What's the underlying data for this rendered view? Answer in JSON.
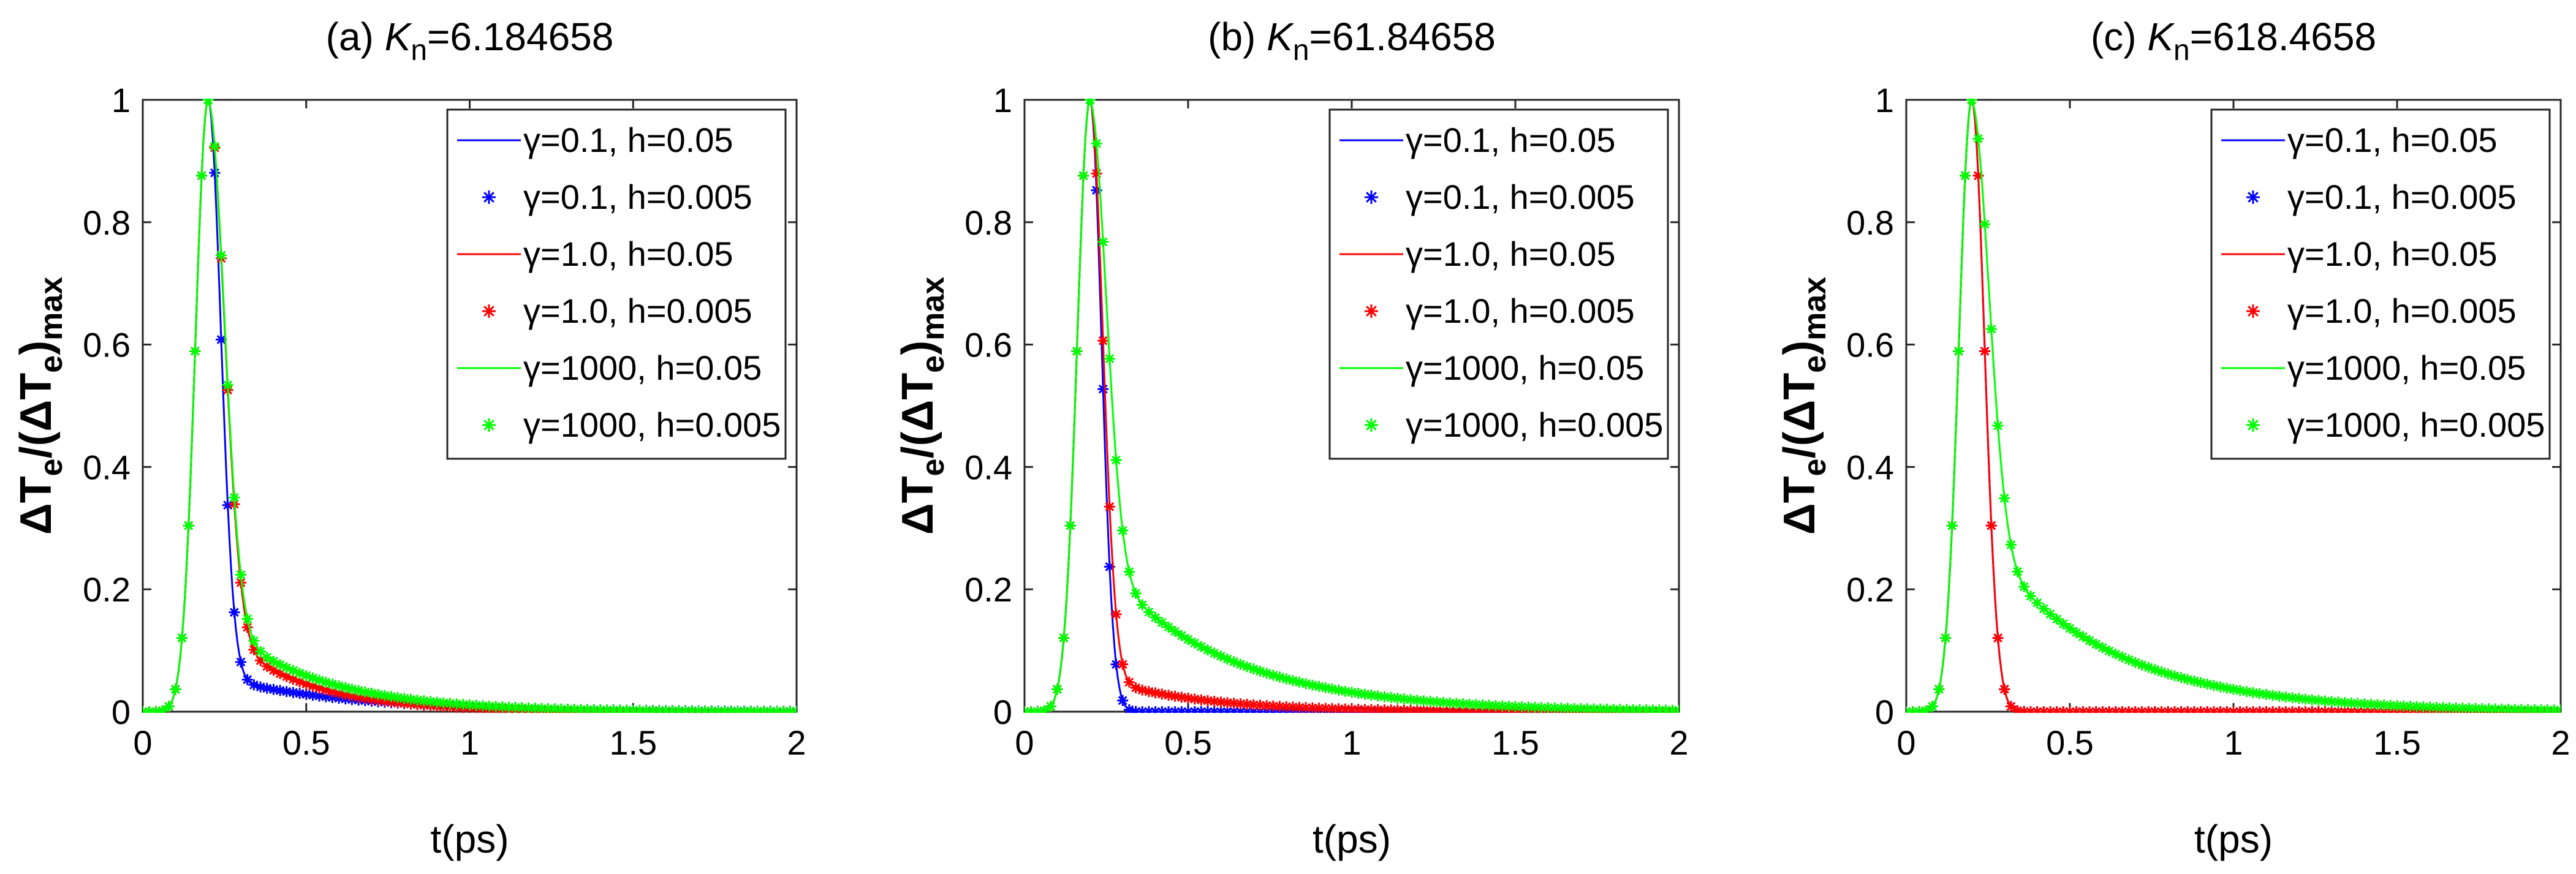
{
  "chart_data": [
    {
      "type": "line",
      "panel": "(a)",
      "title_prefix": "(a)",
      "title_symbol": "K",
      "title_subscript": "n",
      "title_value": "=6.184658",
      "xlabel": "t(ps)",
      "ylabel": {
        "delta": "Δ",
        "T": "T",
        "e": "e",
        "mid": "/(",
        "max_tail": ")",
        "max": "max"
      },
      "xlim": [
        0,
        2
      ],
      "ylim": [
        0,
        1
      ],
      "xticks": [
        "0",
        "0.5",
        "1",
        "1.5",
        "2"
      ],
      "yticks": [
        "0",
        "0.2",
        "0.4",
        "0.6",
        "0.8",
        "1"
      ],
      "peak_t": 0.2,
      "rise_width": 0.055,
      "legend": [
        {
          "label": "γ=0.1, h=0.05",
          "style": "line",
          "color": "#0000ff"
        },
        {
          "label": "γ=0.1, h=0.005",
          "style": "marker",
          "color": "#0000ff"
        },
        {
          "label": "γ=1.0, h=0.05",
          "style": "line",
          "color": "#ff0000"
        },
        {
          "label": "γ=1.0, h=0.005",
          "style": "marker",
          "color": "#ff0000"
        },
        {
          "label": "γ=1000, h=0.05",
          "style": "line",
          "color": "#00ff00"
        },
        {
          "label": "γ=1000, h=0.005",
          "style": "marker",
          "color": "#00ff00"
        }
      ],
      "series": [
        {
          "name": "γ=0.1",
          "color": "#0000ff",
          "decay_fast": 0.055,
          "slow_amp": 0.06,
          "slow_tau": 0.4
        },
        {
          "name": "γ=1.0",
          "color": "#ff0000",
          "decay_fast": 0.07,
          "slow_amp": 0.15,
          "slow_tau": 0.25
        },
        {
          "name": "γ=1000",
          "color": "#00ff00",
          "decay_fast": 0.07,
          "slow_amp": 0.16,
          "slow_tau": 0.3
        }
      ]
    },
    {
      "type": "line",
      "panel": "(b)",
      "title_prefix": "(b)",
      "title_symbol": "K",
      "title_subscript": "n",
      "title_value": "=61.84658",
      "xlabel": "t(ps)",
      "ylabel": {
        "delta": "Δ",
        "T": "T",
        "e": "e",
        "mid": "/(",
        "max_tail": ")",
        "max": "max"
      },
      "xlim": [
        0,
        2
      ],
      "ylim": [
        0,
        1
      ],
      "xticks": [
        "0",
        "0.5",
        "1",
        "1.5",
        "2"
      ],
      "yticks": [
        "0",
        "0.2",
        "0.4",
        "0.6",
        "0.8",
        "1"
      ],
      "peak_t": 0.2,
      "rise_width": 0.055,
      "legend": [
        {
          "label": "γ=0.1, h=0.05",
          "style": "line",
          "color": "#0000ff"
        },
        {
          "label": "γ=0.1, h=0.005",
          "style": "marker",
          "color": "#0000ff"
        },
        {
          "label": "γ=1.0, h=0.05",
          "style": "line",
          "color": "#ff0000"
        },
        {
          "label": "γ=1.0, h=0.005",
          "style": "marker",
          "color": "#ff0000"
        },
        {
          "label": "γ=1000, h=0.05",
          "style": "line",
          "color": "#00ff00"
        },
        {
          "label": "γ=1000, h=0.005",
          "style": "marker",
          "color": "#00ff00"
        }
      ],
      "series": [
        {
          "name": "γ=0.1",
          "color": "#0000ff",
          "decay_fast": 0.05,
          "slow_amp": 0.0,
          "slow_tau": 0.3
        },
        {
          "name": "γ=1.0",
          "color": "#ff0000",
          "decay_fast": 0.055,
          "slow_amp": 0.06,
          "slow_tau": 0.3
        },
        {
          "name": "γ=1000",
          "color": "#00ff00",
          "decay_fast": 0.07,
          "slow_amp": 0.26,
          "slow_tau": 0.38
        }
      ]
    },
    {
      "type": "line",
      "panel": "(c)",
      "title_prefix": "(c)",
      "title_symbol": "K",
      "title_subscript": "n",
      "title_value": "=618.4658",
      "xlabel": "t(ps)",
      "ylabel": {
        "delta": "Δ",
        "T": "T",
        "e": "e",
        "mid": "/(",
        "max_tail": ")",
        "max": "max"
      },
      "xlim": [
        0,
        2
      ],
      "ylim": [
        0,
        1
      ],
      "xticks": [
        "0",
        "0.5",
        "1",
        "1.5",
        "2"
      ],
      "yticks": [
        "0",
        "0.2",
        "0.4",
        "0.6",
        "0.8",
        "1"
      ],
      "peak_t": 0.2,
      "rise_width": 0.055,
      "legend": [
        {
          "label": "γ=0.1, h=0.05",
          "style": "line",
          "color": "#0000ff"
        },
        {
          "label": "γ=0.1, h=0.005",
          "style": "marker",
          "color": "#0000ff"
        },
        {
          "label": "γ=1.0, h=0.05",
          "style": "line",
          "color": "#ff0000"
        },
        {
          "label": "γ=1.0, h=0.005",
          "style": "marker",
          "color": "#ff0000"
        },
        {
          "label": "γ=1000, h=0.05",
          "style": "line",
          "color": "#00ff00"
        },
        {
          "label": "γ=1000, h=0.005",
          "style": "marker",
          "color": "#00ff00"
        }
      ],
      "series": [
        {
          "name": "γ=0.1",
          "color": "#0000ff",
          "decay_fast": 0.055,
          "slow_amp": 0.0,
          "slow_tau": 0.3
        },
        {
          "name": "γ=1.0",
          "color": "#ff0000",
          "decay_fast": 0.055,
          "slow_amp": 0.0,
          "slow_tau": 0.3
        },
        {
          "name": "γ=1000",
          "color": "#00ff00",
          "decay_fast": 0.075,
          "slow_amp": 0.3,
          "slow_tau": 0.38
        }
      ]
    }
  ]
}
